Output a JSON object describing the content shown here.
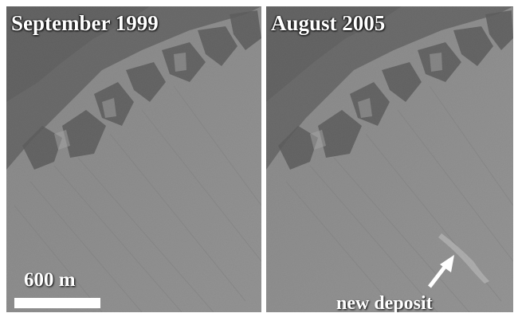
{
  "panels": {
    "left": {
      "caption": "September 1999"
    },
    "right": {
      "caption": "August 2005"
    }
  },
  "scale_bar": {
    "label": "600 m"
  },
  "annotation": {
    "label": "new deposit"
  }
}
